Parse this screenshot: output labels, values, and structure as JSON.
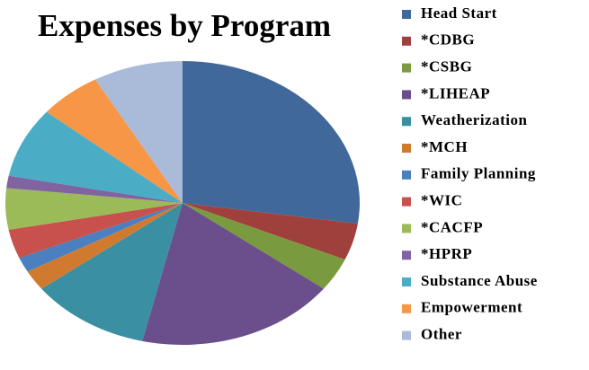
{
  "chart_data": {
    "type": "pie",
    "title": "Expenses by Program",
    "categories": [
      "Head Start",
      "*CDBG",
      "*CSBG",
      "*LIHEAP",
      "Weatherization",
      "*MCH",
      "Family Planning",
      "*WIC",
      "*CACFP",
      "*HPRP",
      "Substance Abuse",
      "Empowerment",
      "Other"
    ],
    "values": [
      27.3,
      4.2,
      3.8,
      18.3,
      11,
      2.3,
      1.7,
      3.3,
      4.7,
      1.4,
      8,
      5.7,
      8.2
    ],
    "colors": [
      "#41689b",
      "#a0403d",
      "#7a9a3f",
      "#6a4f8c",
      "#3b8fa2",
      "#d07a30",
      "#4a7fc0",
      "#c8504d",
      "#9bbb59",
      "#8064a2",
      "#4bacc6",
      "#f79646",
      "#a9bbd9"
    ],
    "legend": "right"
  }
}
